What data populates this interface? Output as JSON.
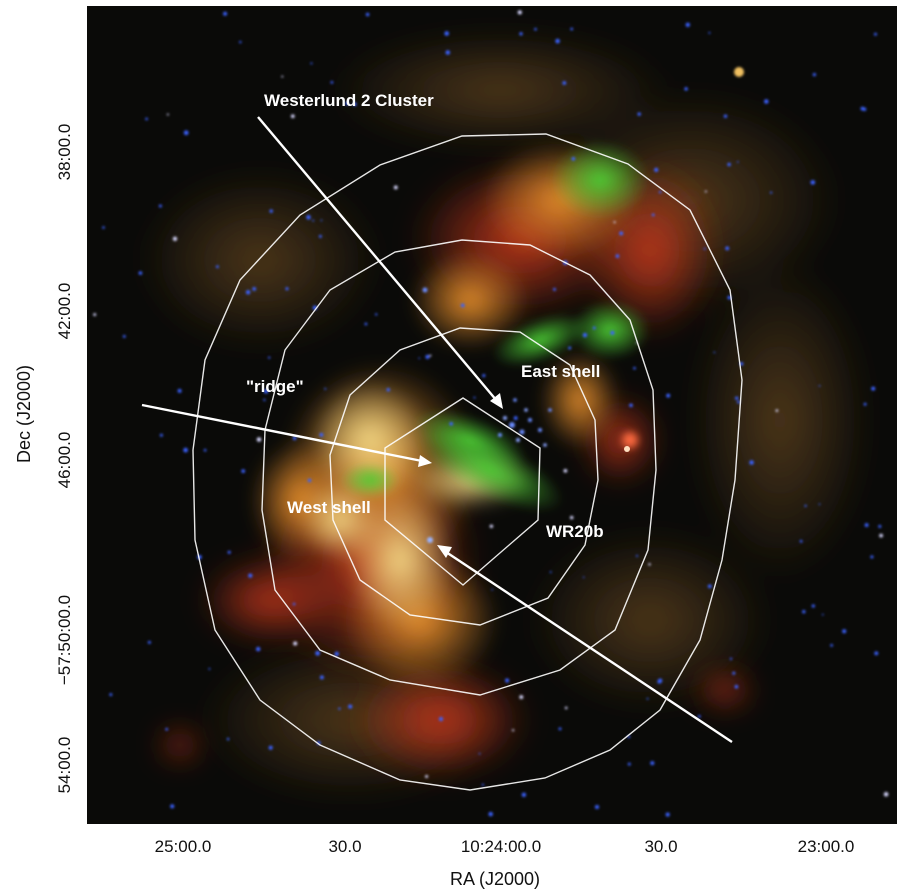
{
  "figure": {
    "x_axis_title": "RA (J2000)",
    "y_axis_title": "Dec (J2000)",
    "x_ticks": [
      "25:00.0",
      "30.0",
      "10:24:00.0",
      "30.0",
      "23:00.0"
    ],
    "y_ticks": [
      "38:00.0",
      "42:00.0",
      "46:00.0",
      "−57:50:00.0",
      "54:00.0"
    ],
    "annotations": {
      "cluster": "Westerlund 2 Cluster",
      "ridge": "\"ridge\"",
      "east_shell": "East shell",
      "west_shell": "West shell",
      "wr20b": "WR20b"
    },
    "colors": {
      "background": "#ffffff",
      "sky": "#0a0a08",
      "red_emission": "#c8321a",
      "orange_emission": "#e0902a",
      "yellow_emission": "#f0d070",
      "green_emission": "#40c030",
      "stars": "#3060ff",
      "contours": "#ffffff"
    },
    "contour_count": 4
  }
}
